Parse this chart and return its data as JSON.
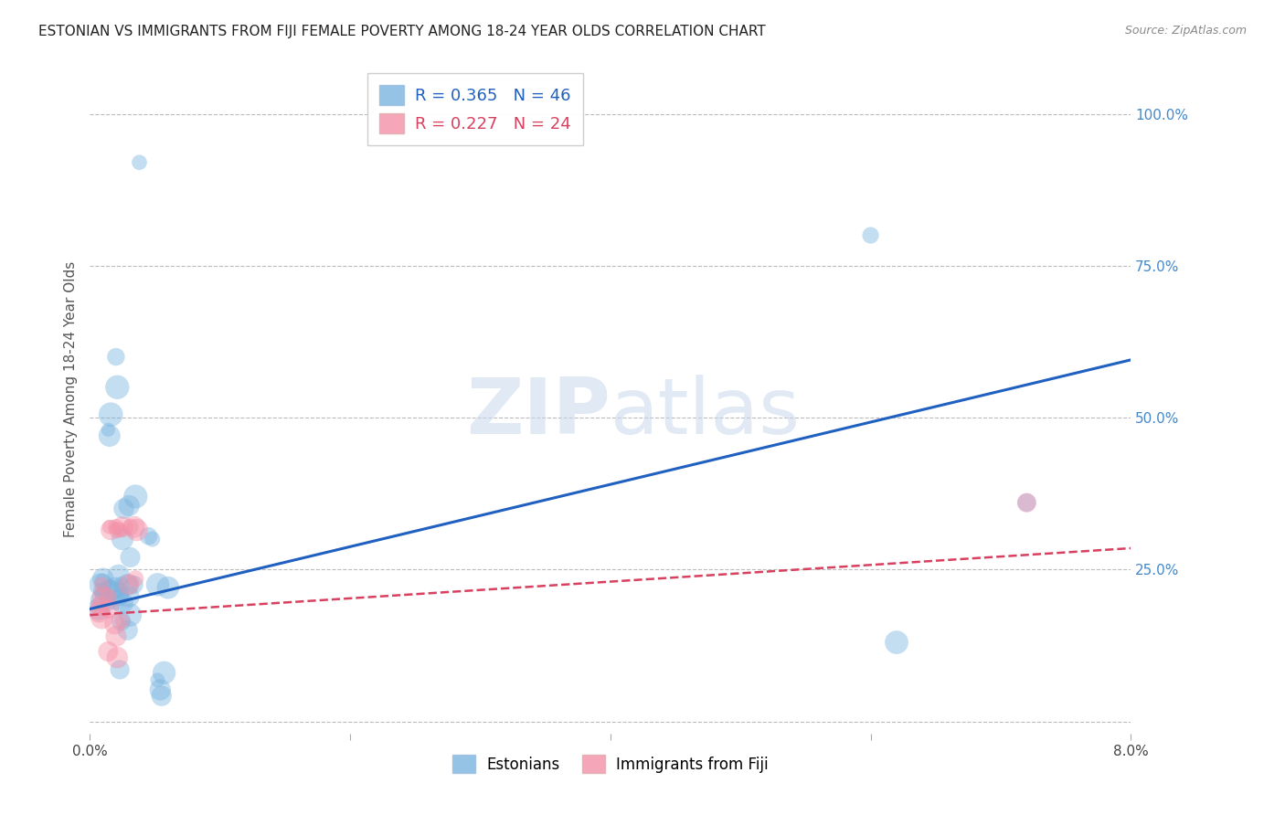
{
  "title": "ESTONIAN VS IMMIGRANTS FROM FIJI FEMALE POVERTY AMONG 18-24 YEAR OLDS CORRELATION CHART",
  "source": "Source: ZipAtlas.com",
  "ylabel": "Female Poverty Among 18-24 Year Olds",
  "xlim": [
    0.0,
    0.08
  ],
  "ylim": [
    -0.02,
    1.08
  ],
  "yticks": [
    0.0,
    0.25,
    0.5,
    0.75,
    1.0
  ],
  "ytick_labels": [
    "",
    "25.0%",
    "50.0%",
    "75.0%",
    "100.0%"
  ],
  "xticks": [
    0.0,
    0.02,
    0.04,
    0.06,
    0.08
  ],
  "xtick_labels": [
    "0.0%",
    "",
    "",
    "",
    "8.0%"
  ],
  "blue_color": "#7ab4e0",
  "pink_color": "#f490a8",
  "line_blue": "#2060c0",
  "line_pink": "#d84060",
  "background_color": "#ffffff",
  "grid_color": "#bbbbbb",
  "legend_R_blue": "0.365",
  "legend_N_blue": "46",
  "legend_R_pink": "0.227",
  "legend_N_pink": "24",
  "watermark_left": "ZIP",
  "watermark_right": "atlas",
  "blue_dots": [
    [
      0.0008,
      0.225
    ],
    [
      0.0009,
      0.21
    ],
    [
      0.001,
      0.235
    ],
    [
      0.0007,
      0.185
    ],
    [
      0.0008,
      0.2
    ],
    [
      0.0009,
      0.215
    ],
    [
      0.001,
      0.23
    ],
    [
      0.0015,
      0.215
    ],
    [
      0.0014,
      0.195
    ],
    [
      0.0016,
      0.22
    ],
    [
      0.0015,
      0.47
    ],
    [
      0.0016,
      0.505
    ],
    [
      0.0014,
      0.48
    ],
    [
      0.002,
      0.2
    ],
    [
      0.0021,
      0.21
    ],
    [
      0.0019,
      0.22
    ],
    [
      0.0022,
      0.24
    ],
    [
      0.002,
      0.6
    ],
    [
      0.0021,
      0.55
    ],
    [
      0.0025,
      0.3
    ],
    [
      0.0026,
      0.35
    ],
    [
      0.0024,
      0.225
    ],
    [
      0.0023,
      0.205
    ],
    [
      0.0025,
      0.195
    ],
    [
      0.0024,
      0.165
    ],
    [
      0.0023,
      0.085
    ],
    [
      0.003,
      0.355
    ],
    [
      0.0031,
      0.27
    ],
    [
      0.0029,
      0.225
    ],
    [
      0.003,
      0.205
    ],
    [
      0.0031,
      0.175
    ],
    [
      0.0029,
      0.15
    ],
    [
      0.0035,
      0.37
    ],
    [
      0.0034,
      0.225
    ],
    [
      0.0038,
      0.92
    ],
    [
      0.0045,
      0.305
    ],
    [
      0.0048,
      0.3
    ],
    [
      0.0052,
      0.225
    ],
    [
      0.0052,
      0.068
    ],
    [
      0.0054,
      0.052
    ],
    [
      0.0055,
      0.042
    ],
    [
      0.0057,
      0.08
    ],
    [
      0.06,
      0.8
    ],
    [
      0.062,
      0.13
    ],
    [
      0.072,
      0.36
    ],
    [
      0.006,
      0.22
    ]
  ],
  "pink_dots": [
    [
      0.0008,
      0.19
    ],
    [
      0.0009,
      0.17
    ],
    [
      0.001,
      0.205
    ],
    [
      0.0007,
      0.18
    ],
    [
      0.0015,
      0.32
    ],
    [
      0.0016,
      0.315
    ],
    [
      0.0014,
      0.205
    ],
    [
      0.0015,
      0.185
    ],
    [
      0.0014,
      0.115
    ],
    [
      0.002,
      0.32
    ],
    [
      0.0021,
      0.315
    ],
    [
      0.0019,
      0.16
    ],
    [
      0.002,
      0.14
    ],
    [
      0.0021,
      0.105
    ],
    [
      0.0025,
      0.32
    ],
    [
      0.0024,
      0.315
    ],
    [
      0.0025,
      0.165
    ],
    [
      0.003,
      0.225
    ],
    [
      0.0031,
      0.32
    ],
    [
      0.0035,
      0.235
    ],
    [
      0.0034,
      0.32
    ],
    [
      0.0036,
      0.315
    ],
    [
      0.072,
      0.36
    ],
    [
      0.0009,
      0.225
    ]
  ],
  "blue_line_x": [
    0.0,
    0.08
  ],
  "blue_line_y": [
    0.185,
    0.595
  ],
  "pink_line_x": [
    0.0,
    0.08
  ],
  "pink_line_y": [
    0.175,
    0.285
  ]
}
